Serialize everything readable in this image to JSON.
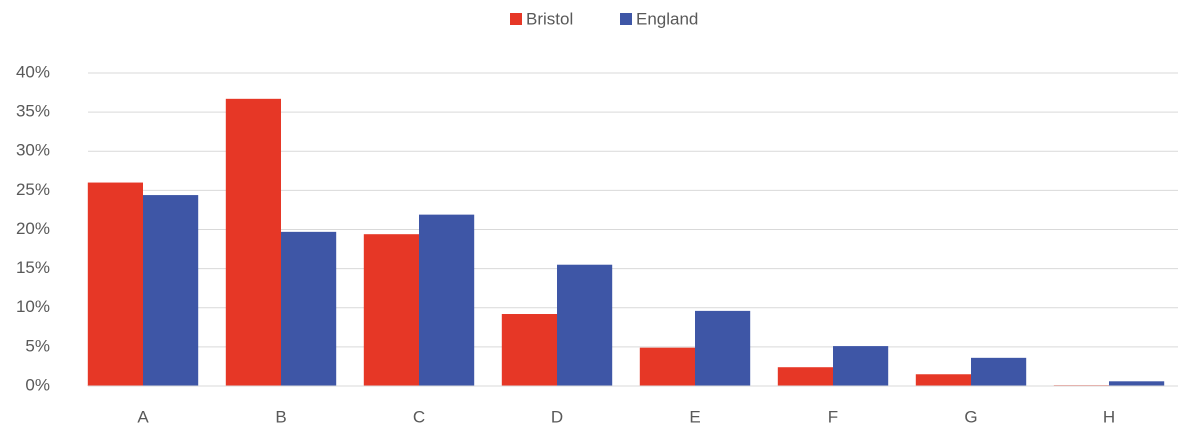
{
  "chart_data": {
    "type": "bar",
    "categories": [
      "A",
      "B",
      "C",
      "D",
      "E",
      "F",
      "G",
      "H"
    ],
    "series": [
      {
        "name": "Bristol",
        "color": "#e63726",
        "values": [
          26,
          36.7,
          19.4,
          9.2,
          4.9,
          2.4,
          1.5,
          0.1
        ]
      },
      {
        "name": "England",
        "color": "#3e56a6",
        "values": [
          24.4,
          19.7,
          21.9,
          15.5,
          9.6,
          5.1,
          3.6,
          0.6
        ]
      }
    ],
    "ylim": [
      0,
      40
    ],
    "yticks": [
      {
        "value": 0,
        "label": "0%"
      },
      {
        "value": 5,
        "label": "5%"
      },
      {
        "value": 10,
        "label": "10%"
      },
      {
        "value": 15,
        "label": "15%"
      },
      {
        "value": 20,
        "label": "20%"
      },
      {
        "value": 25,
        "label": "25%"
      },
      {
        "value": 30,
        "label": "30%"
      },
      {
        "value": 35,
        "label": "35%"
      },
      {
        "value": 40,
        "label": "40%"
      }
    ],
    "grid": true,
    "legend": "top"
  }
}
